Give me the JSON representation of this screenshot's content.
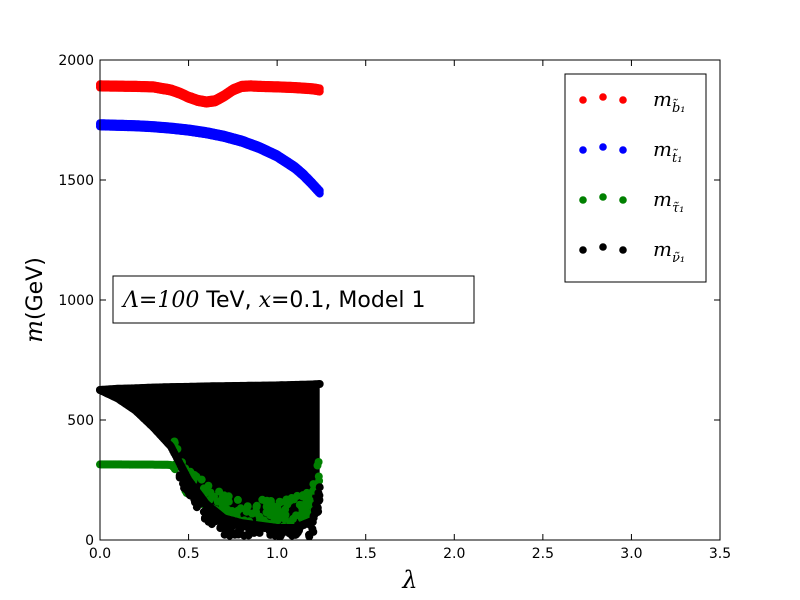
{
  "chart_data": {
    "type": "scatter",
    "xlabel": "λ",
    "ylabel_math": "m",
    "ylabel_text": "(GeV)",
    "xlim": [
      0,
      3.5
    ],
    "ylim": [
      0,
      2000
    ],
    "xticks": [
      "0.0",
      "0.5",
      "1.0",
      "1.5",
      "2.0",
      "2.5",
      "3.0",
      "3.5"
    ],
    "xtick_values": [
      0,
      0.5,
      1.0,
      1.5,
      2.0,
      2.5,
      3.0,
      3.5
    ],
    "yticks": [
      "0",
      "500",
      "1000",
      "1500",
      "2000"
    ],
    "ytick_values": [
      0,
      500,
      1000,
      1500,
      2000
    ],
    "grid": false,
    "legend_position": "top-right",
    "annotation": {
      "math": "Λ=100",
      "text": " TeV, ",
      "x_math": "x",
      "text2": "=0.1, Model 1"
    },
    "series": [
      {
        "name": "m",
        "name_sub": "b̃₁",
        "color": "#ff0000",
        "x": [
          0.0,
          0.1,
          0.2,
          0.3,
          0.4,
          0.45,
          0.5,
          0.55,
          0.6,
          0.65,
          0.7,
          0.75,
          0.8,
          0.85,
          0.9,
          1.0,
          1.1,
          1.2,
          1.24
        ],
        "y": [
          1892,
          1891,
          1890,
          1888,
          1875,
          1862,
          1845,
          1832,
          1825,
          1830,
          1850,
          1875,
          1890,
          1892,
          1890,
          1888,
          1885,
          1880,
          1875
        ]
      },
      {
        "name": "m",
        "name_sub": "t̃₁",
        "color": "#0000ff",
        "x": [
          0.0,
          0.1,
          0.2,
          0.3,
          0.4,
          0.5,
          0.6,
          0.7,
          0.8,
          0.9,
          1.0,
          1.1,
          1.15,
          1.2,
          1.24
        ],
        "y": [
          1730,
          1728,
          1726,
          1722,
          1716,
          1708,
          1697,
          1682,
          1662,
          1635,
          1600,
          1552,
          1520,
          1482,
          1450
        ]
      },
      {
        "name": "m",
        "name_sub": "τ̃₁",
        "color": "#008000",
        "x": [
          0.0,
          0.1,
          0.2,
          0.3,
          0.4,
          0.42,
          0.45,
          0.5,
          0.6,
          0.7,
          0.8,
          0.9,
          1.0,
          1.1,
          1.2,
          1.24
        ],
        "y": [
          315,
          315,
          314,
          314,
          313,
          300,
          250,
          180,
          120,
          80,
          60,
          55,
          50,
          60,
          100,
          230
        ]
      },
      {
        "name": "m",
        "name_sub": "ν̃₁",
        "color": "#000000",
        "x": [
          0.0,
          0.1,
          0.2,
          0.3,
          0.4,
          0.5,
          0.6,
          0.7,
          0.8,
          0.9,
          1.0,
          1.1,
          1.2,
          1.24
        ],
        "y": [
          625,
          630,
          632,
          635,
          637,
          638,
          640,
          641,
          642,
          643,
          644,
          646,
          648,
          650
        ],
        "y_low": [
          625,
          590,
          540,
          470,
          390,
          250,
          150,
          90,
          70,
          60,
          50,
          50,
          80,
          220
        ]
      }
    ]
  }
}
